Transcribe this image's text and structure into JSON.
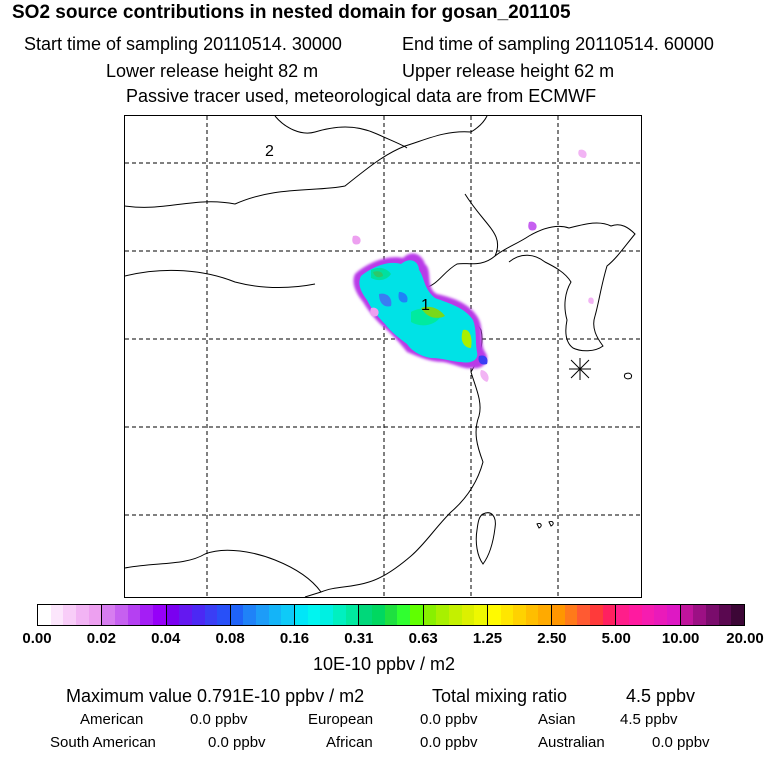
{
  "header": {
    "title": "SO2 source contributions in nested domain for gosan_201105",
    "start_label": "Start time of sampling 20110514. 30000",
    "end_label": "End time of sampling 20110514. 60000",
    "lower_label": "Lower release height   82 m",
    "upper_label": "Upper release height   62 m",
    "note": "Passive tracer used, meteorological data are from ECMWF"
  },
  "map": {
    "labels": [
      {
        "text": "1"
      },
      {
        "text": "2"
      }
    ],
    "marker": "receptor-asterisk"
  },
  "colorbar": {
    "ticks": [
      "0.00",
      "0.02",
      "0.04",
      "0.08",
      "0.16",
      "0.31",
      "0.63",
      "1.25",
      "2.50",
      "5.00",
      "10.00",
      "20.00"
    ],
    "colors": [
      [
        "#ffffff",
        "#fce6fc",
        "#f8cdf8",
        "#f2b4f4",
        "#eda0f0"
      ],
      [
        "#d77df0",
        "#c660f0",
        "#b540f2",
        "#a41ef5",
        "#9600f8"
      ],
      [
        "#7a00f0",
        "#6418f0",
        "#4c28f4",
        "#3a3ef5",
        "#2850f8"
      ],
      [
        "#1f63f8",
        "#1f82f8",
        "#1d9cf8",
        "#14b4f8",
        "#0fcaf8"
      ],
      [
        "#00e6f8",
        "#00f5f0",
        "#00f0e2",
        "#00f0c0",
        "#00eaa0"
      ],
      [
        "#00d87a",
        "#00d860",
        "#1ee040",
        "#30ff30",
        "#60ff00"
      ],
      [
        "#88f000",
        "#a8f000",
        "#c4f000",
        "#dcf000",
        "#eef800"
      ],
      [
        "#fffa00",
        "#ffe600",
        "#ffd200",
        "#ffbe00",
        "#ffaa00"
      ],
      [
        "#ff9600",
        "#ff7a1a",
        "#ff5a32",
        "#ff3a3a",
        "#ff2060"
      ],
      [
        "#ff1e8a",
        "#ff1aa0",
        "#f61cb0",
        "#ea1aba",
        "#de18c4"
      ],
      [
        "#c0149c",
        "#9c1084",
        "#7a0c6c",
        "#5a0850",
        "#3c0636"
      ]
    ]
  },
  "units": "10E-10 ppbv / m2",
  "stats": {
    "max_label": "Maximum value  0.791E-10 ppbv / m2",
    "total_label": "Total mixing ratio",
    "total_value": "4.5 ppbv"
  },
  "regions": {
    "american_label": "American",
    "american_value": "0.0 ppbv",
    "european_label": "European",
    "european_value": "0.0 ppbv",
    "asian_label": "Asian",
    "asian_value": "4.5 ppbv",
    "south_american_label": "South American",
    "south_american_value": "0.0 ppbv",
    "african_label": "African",
    "african_value": "0.0 ppbv",
    "australian_label": "Australian",
    "australian_value": "0.0 ppbv"
  }
}
